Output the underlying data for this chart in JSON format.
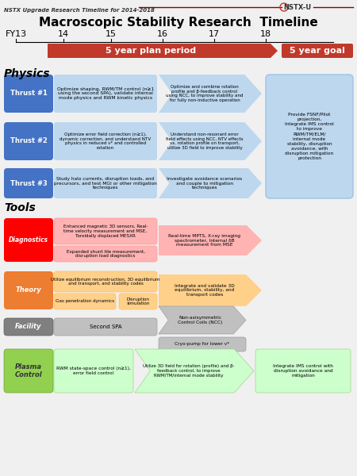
{
  "title": "Macroscopic Stability Research  Timeline",
  "subtitle": "NSTX Upgrade Research Timeline for 2014-2018",
  "logo_text": "NSTX-U",
  "fy_labels": [
    "FY13",
    "14",
    "15",
    "16",
    "17",
    "18"
  ],
  "banner_text": "5 year plan period",
  "goal_text": "5 year goal",
  "bg_color": "#F0F0F0",
  "red": "#C0392B",
  "thrust_blue": "#4472C4",
  "thrust_bg": "#BDD7EE",
  "thrust_border": "#9DC3E6",
  "diag_label": "#FF0000",
  "diag_bg": "#FFB3B3",
  "diag_border": "#FF9999",
  "theory_label": "#ED7D31",
  "theory_bg": "#FFD08A",
  "theory_border": "#FFC060",
  "facility_label": "#808080",
  "facility_bg": "#C0C0C0",
  "facility_border": "#A0A0A0",
  "plasma_label": "#92D050",
  "plasma_bg": "#CCFFCC",
  "plasma_border": "#A9D18E",
  "white": "#FFFFFF",
  "black": "#000000"
}
